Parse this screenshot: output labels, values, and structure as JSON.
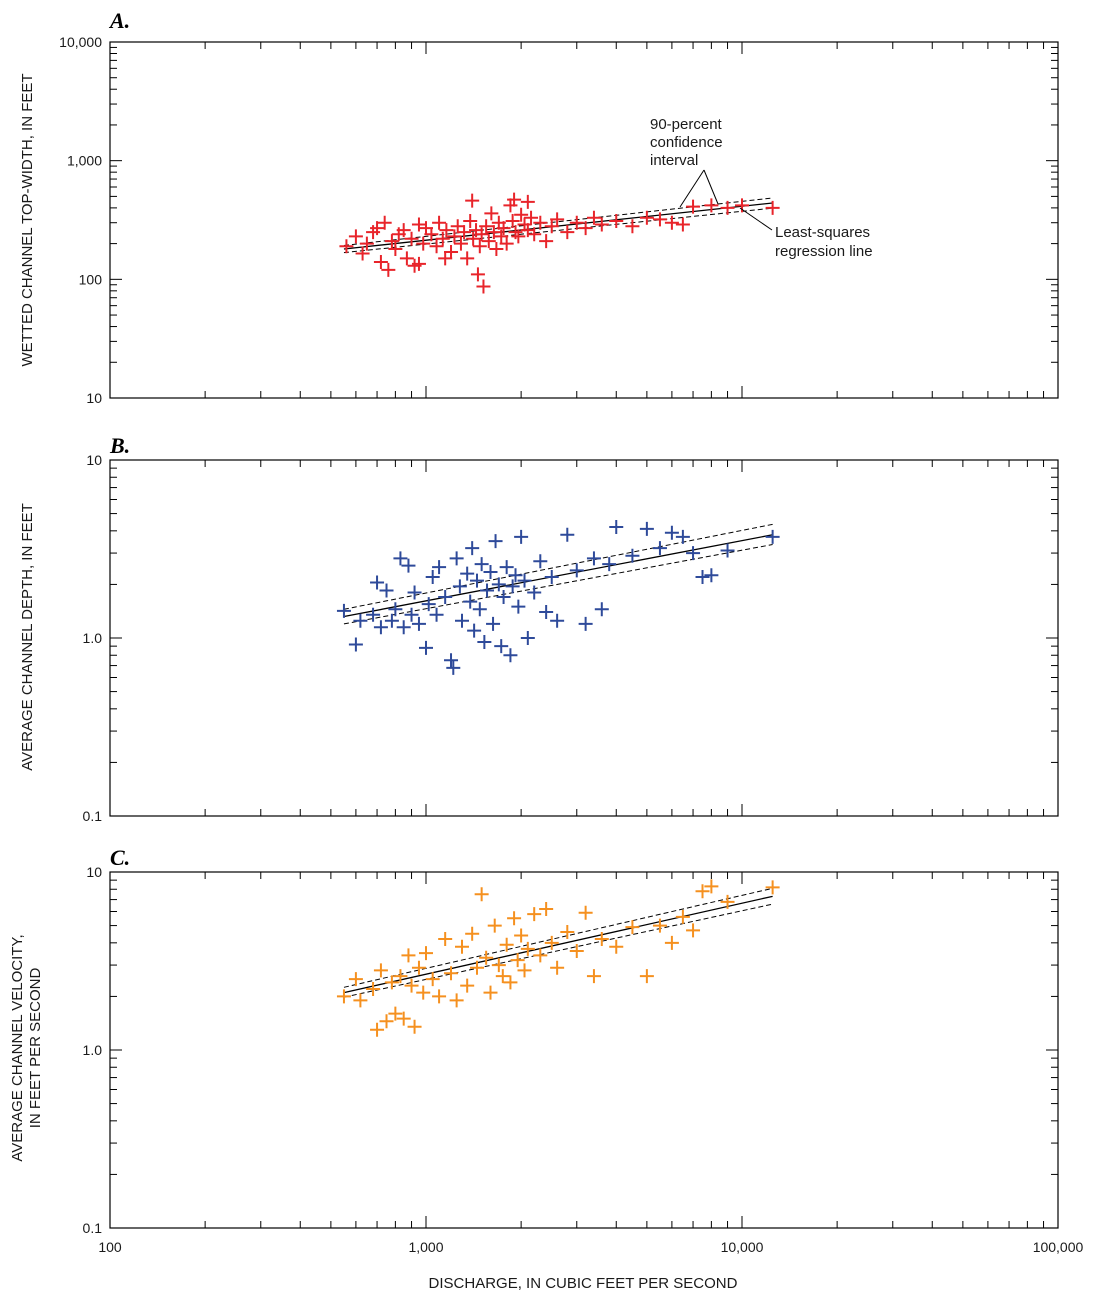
{
  "chart_data": [
    {
      "type": "scatter",
      "panel": "A.",
      "ylabel": "WETTED CHANNEL TOP-WIDTH, IN FEET",
      "xlabel": "DISCHARGE, IN CUBIC FEET PER SECOND",
      "x_scale": "log",
      "y_scale": "log",
      "xlim": [
        100,
        100000
      ],
      "ylim": [
        10,
        10000
      ],
      "x_ticks": [
        "100",
        "1,000",
        "10,000",
        "100,000"
      ],
      "y_ticks": [
        "10",
        "100",
        "1,000",
        "10,000"
      ],
      "marker_color": "#e8242a",
      "annotations": [
        "90-percent confidence interval",
        "Least-squares regression line"
      ],
      "regression": {
        "x": [
          550,
          12500
        ],
        "y": [
          180,
          440
        ]
      },
      "ci_upper": {
        "x": [
          550,
          12500
        ],
        "y": [
          193,
          485
        ]
      },
      "ci_lower": {
        "x": [
          550,
          12500
        ],
        "y": [
          168,
          398
        ]
      },
      "points": [
        [
          560,
          190
        ],
        [
          600,
          230
        ],
        [
          630,
          165
        ],
        [
          650,
          200
        ],
        [
          680,
          250
        ],
        [
          700,
          270
        ],
        [
          720,
          140
        ],
        [
          740,
          300
        ],
        [
          760,
          120
        ],
        [
          780,
          210
        ],
        [
          800,
          180
        ],
        [
          820,
          240
        ],
        [
          850,
          260
        ],
        [
          870,
          150
        ],
        [
          900,
          220
        ],
        [
          920,
          130
        ],
        [
          950,
          290
        ],
        [
          980,
          200
        ],
        [
          1000,
          270
        ],
        [
          1040,
          240
        ],
        [
          1080,
          190
        ],
        [
          1100,
          300
        ],
        [
          1130,
          220
        ],
        [
          1160,
          260
        ],
        [
          1200,
          170
        ],
        [
          1230,
          230
        ],
        [
          1260,
          280
        ],
        [
          1290,
          200
        ],
        [
          1320,
          250
        ],
        [
          1350,
          150
        ],
        [
          1380,
          310
        ],
        [
          1410,
          220
        ],
        [
          1440,
          260
        ],
        [
          1460,
          110
        ],
        [
          1480,
          190
        ],
        [
          1500,
          240
        ],
        [
          1520,
          87
        ],
        [
          1550,
          280
        ],
        [
          1580,
          210
        ],
        [
          1610,
          360
        ],
        [
          1640,
          250
        ],
        [
          1670,
          180
        ],
        [
          1700,
          300
        ],
        [
          1730,
          230
        ],
        [
          1760,
          270
        ],
        [
          1800,
          200
        ],
        [
          1850,
          420
        ],
        [
          1880,
          310
        ],
        [
          1920,
          250
        ],
        [
          1960,
          230
        ],
        [
          2000,
          350
        ],
        [
          2050,
          290
        ],
        [
          2100,
          260
        ],
        [
          2150,
          330
        ],
        [
          2200,
          240
        ],
        [
          2300,
          300
        ],
        [
          2400,
          210
        ],
        [
          2500,
          280
        ],
        [
          2600,
          320
        ],
        [
          2800,
          250
        ],
        [
          3000,
          300
        ],
        [
          3200,
          270
        ],
        [
          3400,
          330
        ],
        [
          3600,
          290
        ],
        [
          4000,
          310
        ],
        [
          4500,
          280
        ],
        [
          5000,
          330
        ],
        [
          5500,
          320
        ],
        [
          6000,
          300
        ],
        [
          6500,
          290
        ],
        [
          7000,
          410
        ],
        [
          8000,
          420
        ],
        [
          9000,
          400
        ],
        [
          10000,
          420
        ],
        [
          12500,
          400
        ],
        [
          1400,
          460
        ],
        [
          1900,
          470
        ],
        [
          2100,
          450
        ],
        [
          950,
          135
        ],
        [
          1150,
          150
        ]
      ]
    },
    {
      "type": "scatter",
      "panel": "B.",
      "ylabel": "AVERAGE CHANNEL DEPTH, IN FEET",
      "xlabel": "DISCHARGE, IN CUBIC FEET PER SECOND",
      "x_scale": "log",
      "y_scale": "log",
      "xlim": [
        100,
        100000
      ],
      "ylim": [
        0.1,
        10
      ],
      "x_ticks": [
        "100",
        "1,000",
        "10,000",
        "100,000"
      ],
      "y_ticks": [
        "0.1",
        "1.0",
        "10"
      ],
      "marker_color": "#2e4a9a",
      "regression": {
        "x": [
          550,
          12500
        ],
        "y": [
          1.32,
          3.8
        ]
      },
      "ci_upper": {
        "x": [
          550,
          12500
        ],
        "y": [
          1.45,
          4.35
        ]
      },
      "ci_lower": {
        "x": [
          550,
          12500
        ],
        "y": [
          1.2,
          3.35
        ]
      },
      "points": [
        [
          550,
          1.42
        ],
        [
          600,
          0.92
        ],
        [
          620,
          1.25
        ],
        [
          680,
          1.35
        ],
        [
          700,
          2.05
        ],
        [
          720,
          1.15
        ],
        [
          750,
          1.85
        ],
        [
          780,
          1.25
        ],
        [
          800,
          1.45
        ],
        [
          830,
          2.8
        ],
        [
          850,
          1.15
        ],
        [
          880,
          2.55
        ],
        [
          900,
          1.35
        ],
        [
          920,
          1.8
        ],
        [
          950,
          1.2
        ],
        [
          1000,
          0.88
        ],
        [
          1020,
          1.55
        ],
        [
          1050,
          2.2
        ],
        [
          1080,
          1.35
        ],
        [
          1100,
          2.5
        ],
        [
          1150,
          1.7
        ],
        [
          1200,
          0.75
        ],
        [
          1220,
          0.68
        ],
        [
          1250,
          2.8
        ],
        [
          1280,
          1.95
        ],
        [
          1300,
          1.25
        ],
        [
          1350,
          2.3
        ],
        [
          1380,
          1.6
        ],
        [
          1400,
          3.2
        ],
        [
          1420,
          1.1
        ],
        [
          1450,
          2.1
        ],
        [
          1480,
          1.45
        ],
        [
          1500,
          2.6
        ],
        [
          1530,
          0.95
        ],
        [
          1560,
          1.85
        ],
        [
          1600,
          2.35
        ],
        [
          1630,
          1.2
        ],
        [
          1660,
          3.5
        ],
        [
          1700,
          2.0
        ],
        [
          1730,
          0.9
        ],
        [
          1760,
          1.7
        ],
        [
          1800,
          2.5
        ],
        [
          1850,
          0.8
        ],
        [
          1880,
          1.95
        ],
        [
          1920,
          2.25
        ],
        [
          1960,
          1.5
        ],
        [
          2000,
          3.7
        ],
        [
          2050,
          2.1
        ],
        [
          2100,
          1.0
        ],
        [
          2200,
          1.8
        ],
        [
          2300,
          2.7
        ],
        [
          2400,
          1.4
        ],
        [
          2500,
          2.2
        ],
        [
          2600,
          1.25
        ],
        [
          2800,
          3.8
        ],
        [
          3000,
          2.4
        ],
        [
          3200,
          1.2
        ],
        [
          3400,
          2.8
        ],
        [
          3600,
          1.45
        ],
        [
          3800,
          2.6
        ],
        [
          4000,
          4.2
        ],
        [
          4500,
          2.9
        ],
        [
          5000,
          4.1
        ],
        [
          5500,
          3.2
        ],
        [
          6000,
          3.9
        ],
        [
          6500,
          3.7
        ],
        [
          7000,
          3.0
        ],
        [
          7500,
          2.2
        ],
        [
          8000,
          2.25
        ],
        [
          9000,
          3.1
        ],
        [
          12500,
          3.7
        ]
      ]
    },
    {
      "type": "scatter",
      "panel": "C.",
      "ylabel": "AVERAGE CHANNEL VELOCITY, IN FEET PER SECOND",
      "ylabel_lines": [
        "AVERAGE CHANNEL VELOCITY,",
        "IN FEET PER SECOND"
      ],
      "xlabel": "DISCHARGE, IN CUBIC FEET PER SECOND",
      "x_scale": "log",
      "y_scale": "log",
      "xlim": [
        100,
        100000
      ],
      "ylim": [
        0.1,
        10
      ],
      "x_ticks": [
        "100",
        "1,000",
        "10,000",
        "100,000"
      ],
      "y_ticks": [
        "0.1",
        "1.0",
        "10"
      ],
      "marker_color": "#f5901f",
      "regression": {
        "x": [
          550,
          12500
        ],
        "y": [
          2.1,
          7.3
        ]
      },
      "ci_upper": {
        "x": [
          550,
          12500
        ],
        "y": [
          2.25,
          8.1
        ]
      },
      "ci_lower": {
        "x": [
          550,
          12500
        ],
        "y": [
          1.98,
          6.6
        ]
      },
      "points": [
        [
          550,
          2.0
        ],
        [
          600,
          2.5
        ],
        [
          620,
          1.9
        ],
        [
          680,
          2.2
        ],
        [
          700,
          1.3
        ],
        [
          720,
          2.8
        ],
        [
          750,
          1.45
        ],
        [
          780,
          2.4
        ],
        [
          800,
          1.6
        ],
        [
          830,
          2.6
        ],
        [
          850,
          1.5
        ],
        [
          880,
          3.4
        ],
        [
          900,
          2.3
        ],
        [
          920,
          1.35
        ],
        [
          950,
          2.9
        ],
        [
          980,
          2.1
        ],
        [
          1000,
          3.5
        ],
        [
          1050,
          2.5
        ],
        [
          1100,
          2.0
        ],
        [
          1150,
          4.2
        ],
        [
          1200,
          2.7
        ],
        [
          1250,
          1.9
        ],
        [
          1300,
          3.8
        ],
        [
          1350,
          2.3
        ],
        [
          1400,
          4.5
        ],
        [
          1450,
          2.9
        ],
        [
          1500,
          7.5
        ],
        [
          1550,
          3.3
        ],
        [
          1600,
          2.1
        ],
        [
          1650,
          5.0
        ],
        [
          1700,
          3.0
        ],
        [
          1750,
          2.6
        ],
        [
          1800,
          3.9
        ],
        [
          1850,
          2.4
        ],
        [
          1900,
          5.5
        ],
        [
          1950,
          3.2
        ],
        [
          2000,
          4.4
        ],
        [
          2050,
          2.8
        ],
        [
          2100,
          3.7
        ],
        [
          2200,
          5.8
        ],
        [
          2300,
          3.4
        ],
        [
          2400,
          6.2
        ],
        [
          2500,
          4.0
        ],
        [
          2600,
          2.9
        ],
        [
          2800,
          4.6
        ],
        [
          3000,
          3.6
        ],
        [
          3200,
          5.9
        ],
        [
          3400,
          2.6
        ],
        [
          3600,
          4.2
        ],
        [
          4000,
          3.8
        ],
        [
          4500,
          4.9
        ],
        [
          5000,
          2.6
        ],
        [
          5500,
          5.0
        ],
        [
          6000,
          4.0
        ],
        [
          6500,
          5.6
        ],
        [
          7000,
          4.7
        ],
        [
          7500,
          7.8
        ],
        [
          8000,
          8.3
        ],
        [
          9000,
          6.8
        ],
        [
          12500,
          8.2
        ]
      ]
    }
  ],
  "x_axis_title": "DISCHARGE, IN CUBIC FEET PER SECOND"
}
